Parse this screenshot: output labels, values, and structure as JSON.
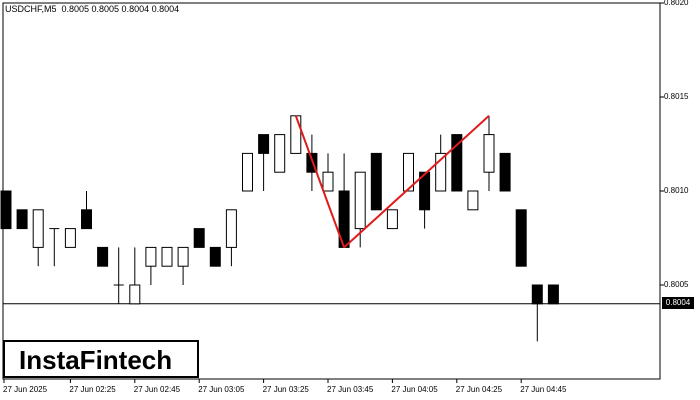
{
  "chart_data": {
    "type": "candlestick",
    "title": "USDCHF,M5  0.8005 0.8005 0.8004 0.8004",
    "symbol": "USDCHF",
    "timeframe": "M5",
    "ohlc_header": "0.8005 0.8005 0.8004 0.8004",
    "ylim": [
      0.8,
      0.802
    ],
    "y_ticks": [
      "0.8020",
      "0.8015",
      "0.8010",
      "0.8005"
    ],
    "current_price": "0.8004",
    "x_ticks": [
      "27 Jun 2025",
      "27 Jun 02:25",
      "27 Jun 02:45",
      "27 Jun 03:05",
      "27 Jun 03:25",
      "27 Jun 03:45",
      "27 Jun 04:05",
      "27 Jun 04:25",
      "27 Jun 04:45"
    ],
    "candles": [
      {
        "o": 0.801,
        "h": 0.801,
        "l": 0.8008,
        "c": 0.8008
      },
      {
        "o": 0.8009,
        "h": 0.8009,
        "l": 0.8008,
        "c": 0.8008
      },
      {
        "o": 0.8007,
        "h": 0.8009,
        "l": 0.8006,
        "c": 0.8009
      },
      {
        "o": 0.8008,
        "h": 0.8008,
        "l": 0.8006,
        "c": 0.8008
      },
      {
        "o": 0.8007,
        "h": 0.8008,
        "l": 0.8007,
        "c": 0.8008
      },
      {
        "o": 0.8009,
        "h": 0.801,
        "l": 0.8008,
        "c": 0.8008
      },
      {
        "o": 0.8007,
        "h": 0.8007,
        "l": 0.8006,
        "c": 0.8006
      },
      {
        "o": 0.8005,
        "h": 0.8007,
        "l": 0.8004,
        "c": 0.8005
      },
      {
        "o": 0.8004,
        "h": 0.8007,
        "l": 0.8004,
        "c": 0.8005
      },
      {
        "o": 0.8006,
        "h": 0.8007,
        "l": 0.8005,
        "c": 0.8007
      },
      {
        "o": 0.8006,
        "h": 0.8007,
        "l": 0.8006,
        "c": 0.8007
      },
      {
        "o": 0.8006,
        "h": 0.8007,
        "l": 0.8005,
        "c": 0.8007
      },
      {
        "o": 0.8008,
        "h": 0.8008,
        "l": 0.8007,
        "c": 0.8007
      },
      {
        "o": 0.8007,
        "h": 0.8007,
        "l": 0.8006,
        "c": 0.8006
      },
      {
        "o": 0.8007,
        "h": 0.8009,
        "l": 0.8006,
        "c": 0.8009
      },
      {
        "o": 0.801,
        "h": 0.8012,
        "l": 0.801,
        "c": 0.8012
      },
      {
        "o": 0.8013,
        "h": 0.8013,
        "l": 0.801,
        "c": 0.8012
      },
      {
        "o": 0.8011,
        "h": 0.8013,
        "l": 0.8011,
        "c": 0.8013
      },
      {
        "o": 0.8012,
        "h": 0.8014,
        "l": 0.8012,
        "c": 0.8014
      },
      {
        "o": 0.8012,
        "h": 0.8013,
        "l": 0.801,
        "c": 0.8011
      },
      {
        "o": 0.801,
        "h": 0.8012,
        "l": 0.801,
        "c": 0.8011
      },
      {
        "o": 0.801,
        "h": 0.8012,
        "l": 0.8007,
        "c": 0.8007
      },
      {
        "o": 0.8008,
        "h": 0.8011,
        "l": 0.8007,
        "c": 0.8011
      },
      {
        "o": 0.8012,
        "h": 0.8012,
        "l": 0.8009,
        "c": 0.8009
      },
      {
        "o": 0.8008,
        "h": 0.8009,
        "l": 0.8008,
        "c": 0.8009
      },
      {
        "o": 0.801,
        "h": 0.8012,
        "l": 0.801,
        "c": 0.8012
      },
      {
        "o": 0.8011,
        "h": 0.8011,
        "l": 0.8008,
        "c": 0.8009
      },
      {
        "o": 0.801,
        "h": 0.8013,
        "l": 0.801,
        "c": 0.8012
      },
      {
        "o": 0.8013,
        "h": 0.8013,
        "l": 0.801,
        "c": 0.801
      },
      {
        "o": 0.8009,
        "h": 0.801,
        "l": 0.8009,
        "c": 0.801
      },
      {
        "o": 0.8011,
        "h": 0.8014,
        "l": 0.801,
        "c": 0.8013
      },
      {
        "o": 0.8012,
        "h": 0.8012,
        "l": 0.801,
        "c": 0.801
      },
      {
        "o": 0.8009,
        "h": 0.8009,
        "l": 0.8006,
        "c": 0.8006
      },
      {
        "o": 0.8005,
        "h": 0.8005,
        "l": 0.8002,
        "c": 0.8004
      },
      {
        "o": 0.8005,
        "h": 0.8005,
        "l": 0.8004,
        "c": 0.8004
      }
    ],
    "pattern_lines": [
      {
        "from_index": 18,
        "from_price": 0.8014,
        "to_index": 21,
        "to_price": 0.8007
      },
      {
        "from_index": 21,
        "from_price": 0.8007,
        "to_index": 30,
        "to_price": 0.8014
      }
    ],
    "grid": false
  },
  "watermark": "InstaFintech",
  "colors": {
    "background": "#ffffff",
    "axis": "#000000",
    "bull": "#ffffff",
    "bear": "#000000",
    "pattern": "#e01b1b"
  }
}
